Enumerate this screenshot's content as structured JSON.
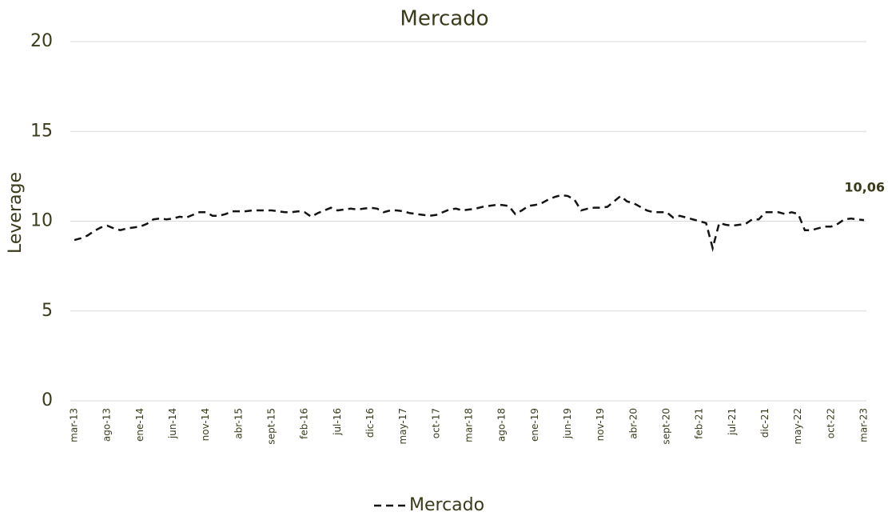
{
  "chart_data": {
    "type": "line",
    "title": "Mercado",
    "y_label": "Leverage",
    "categories": [
      "mar-13",
      null,
      null,
      null,
      null,
      "ago-13",
      null,
      null,
      null,
      null,
      "ene-14",
      null,
      null,
      null,
      null,
      "jun-14",
      null,
      null,
      null,
      null,
      "nov-14",
      null,
      null,
      null,
      null,
      "abr-15",
      null,
      null,
      null,
      null,
      "sept-15",
      null,
      null,
      null,
      null,
      "feb-16",
      null,
      null,
      null,
      null,
      "jul-16",
      null,
      null,
      null,
      null,
      "dic-16",
      null,
      null,
      null,
      null,
      "may-17",
      null,
      null,
      null,
      null,
      "oct-17",
      null,
      null,
      null,
      null,
      "mar-18",
      null,
      null,
      null,
      null,
      "ago-18",
      null,
      null,
      null,
      null,
      "ene-19",
      null,
      null,
      null,
      null,
      "jun-19",
      null,
      null,
      null,
      null,
      "nov-19",
      null,
      null,
      null,
      null,
      "abr-20",
      null,
      null,
      null,
      null,
      "sept-20",
      null,
      null,
      null,
      null,
      "feb-21",
      null,
      null,
      null,
      null,
      "jul-21",
      null,
      null,
      null,
      null,
      "dic-21",
      null,
      null,
      null,
      null,
      "may-22",
      null,
      null,
      null,
      null,
      "oct-22",
      null,
      null,
      null,
      null,
      "mar-23"
    ],
    "series": [
      {
        "name": "Mercado",
        "color": "#141414",
        "dashed": true,
        "values": [
          8.95,
          9.05,
          9.2,
          9.45,
          9.65,
          9.75,
          9.6,
          9.5,
          9.6,
          9.65,
          9.7,
          9.85,
          10.1,
          10.15,
          10.1,
          10.15,
          10.25,
          10.2,
          10.35,
          10.5,
          10.5,
          10.3,
          10.3,
          10.4,
          10.55,
          10.55,
          10.55,
          10.6,
          10.6,
          10.6,
          10.6,
          10.55,
          10.5,
          10.5,
          10.55,
          10.5,
          10.25,
          10.45,
          10.6,
          10.75,
          10.6,
          10.65,
          10.7,
          10.65,
          10.7,
          10.75,
          10.7,
          10.5,
          10.6,
          10.6,
          10.55,
          10.45,
          10.4,
          10.35,
          10.3,
          10.35,
          10.5,
          10.65,
          10.7,
          10.6,
          10.65,
          10.7,
          10.8,
          10.85,
          10.9,
          10.9,
          10.85,
          10.4,
          10.6,
          10.85,
          10.9,
          11.0,
          11.2,
          11.35,
          11.45,
          11.4,
          11.2,
          10.6,
          10.7,
          10.75,
          10.75,
          10.8,
          11.1,
          11.4,
          11.1,
          11.0,
          10.8,
          10.6,
          10.5,
          10.5,
          10.5,
          10.2,
          10.3,
          10.2,
          10.1,
          10.0,
          9.9,
          8.5,
          9.9,
          9.8,
          9.75,
          9.8,
          9.85,
          10.1,
          10.1,
          10.5,
          10.5,
          10.5,
          10.4,
          10.5,
          10.4,
          9.5,
          9.5,
          9.6,
          9.7,
          9.7,
          9.85,
          10.1,
          10.15,
          10.1,
          10.06
        ],
        "value_labels": [
          null,
          null,
          null,
          null,
          null,
          null,
          null,
          null,
          null,
          null,
          null,
          null,
          null,
          null,
          null,
          null,
          null,
          null,
          null,
          null,
          null,
          null,
          null,
          null,
          null,
          null,
          null,
          null,
          null,
          null,
          null,
          null,
          null,
          null,
          null,
          null,
          null,
          null,
          null,
          null,
          null,
          null,
          null,
          null,
          null,
          null,
          null,
          null,
          null,
          null,
          null,
          null,
          null,
          null,
          null,
          null,
          null,
          null,
          null,
          null,
          null,
          null,
          null,
          null,
          null,
          null,
          null,
          null,
          null,
          null,
          null,
          null,
          null,
          null,
          null,
          null,
          null,
          null,
          null,
          null,
          null,
          null,
          null,
          null,
          null,
          null,
          null,
          null,
          null,
          null,
          null,
          null,
          null,
          null,
          null,
          null,
          null,
          null,
          null,
          null,
          null,
          null,
          null,
          null,
          null,
          null,
          null,
          null,
          null,
          null,
          null,
          null,
          null,
          null,
          null,
          null,
          null,
          null,
          null,
          null,
          "10,06"
        ]
      }
    ],
    "ylim": [
      0,
      20
    ],
    "yticks": [
      0,
      5,
      10,
      15,
      20
    ],
    "grid": true,
    "legend": "bottom"
  }
}
